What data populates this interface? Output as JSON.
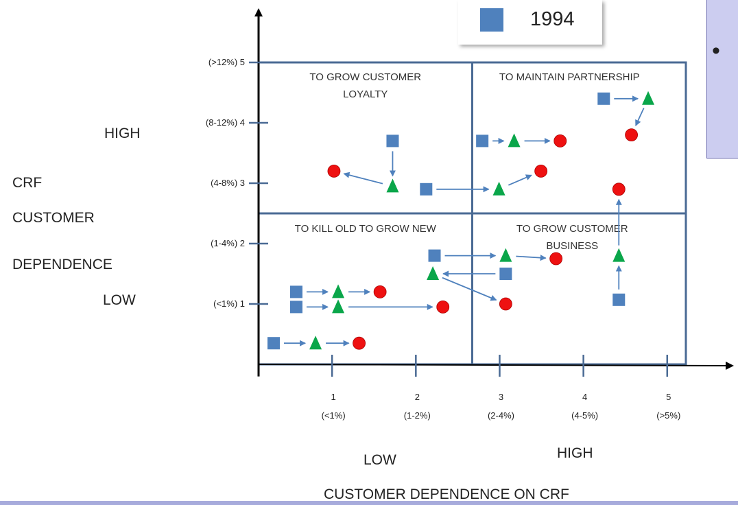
{
  "legend": {
    "label": "1994",
    "swatch_color": "#4f81bd"
  },
  "note_box": {
    "bullet": "•",
    "background": "#cccdf0"
  },
  "colors": {
    "square": "#4f81bd",
    "triangle": "#0aa64a",
    "circle": "#ee1111",
    "arrow": "#4f81bd",
    "grid": "#4a6a94"
  },
  "y_side_labels": {
    "high": "HIGH",
    "low": "LOW",
    "crf": "CRF",
    "customer": "CUSTOMER",
    "dependence": "DEPENDENCE"
  },
  "x_side_labels": {
    "low": "LOW",
    "high": "HIGH",
    "title": "CUSTOMER DEPENDENCE ON CRF"
  },
  "quadrants": {
    "top_left": [
      "TO GROW CUSTOMER",
      "LOYALTY"
    ],
    "top_right": [
      "TO MAINTAIN PARTNERSHIP"
    ],
    "bottom_left": [
      "TO KILL OLD TO GROW NEW"
    ],
    "bottom_right": [
      "TO GROW CUSTOMER",
      "BUSINESS"
    ]
  },
  "chart_data": {
    "type": "scatter",
    "x_axis": {
      "title": "CUSTOMER DEPENDENCE ON CRF",
      "ticks": [
        {
          "value": 1,
          "label": "1",
          "sub": "(<1%)"
        },
        {
          "value": 2,
          "label": "2",
          "sub": "(1-2%)"
        },
        {
          "value": 3,
          "label": "3",
          "sub": "(2-4%)"
        },
        {
          "value": 4,
          "label": "4",
          "sub": "(4-5%)"
        },
        {
          "value": 5,
          "label": "5",
          "sub": "(>5%)"
        }
      ],
      "range": [
        0.2,
        5.6
      ]
    },
    "y_axis": {
      "ticks": [
        {
          "value": 1,
          "label": "(<1%)   1"
        },
        {
          "value": 2,
          "label": "(1-4%)   2"
        },
        {
          "value": 3,
          "label": "(4-8%)   3"
        },
        {
          "value": 4,
          "label": "(8-12%)   4"
        },
        {
          "value": 5,
          "label": "(>12%)   5"
        }
      ],
      "range": [
        -0.2,
        6.3
      ]
    },
    "quadrant_split": {
      "x": 2.55,
      "y": 2.5
    },
    "frame": {
      "x": [
        0.0,
        5.1
      ],
      "y": [
        0.0,
        5.0
      ]
    },
    "legend": [
      {
        "marker": "square",
        "label": "1994"
      }
    ],
    "points": [
      {
        "id": "a1",
        "marker": "square",
        "x": 1.6,
        "y": 3.7
      },
      {
        "id": "a2",
        "marker": "triangle",
        "x": 1.6,
        "y": 2.95
      },
      {
        "id": "a3",
        "marker": "circle",
        "x": 0.9,
        "y": 3.2
      },
      {
        "id": "b1",
        "marker": "square",
        "x": 2.0,
        "y": 2.9
      },
      {
        "id": "b2",
        "marker": "triangle",
        "x": 2.87,
        "y": 2.9
      },
      {
        "id": "b3",
        "marker": "circle",
        "x": 3.37,
        "y": 3.2
      },
      {
        "id": "c1",
        "marker": "square",
        "x": 2.67,
        "y": 3.7
      },
      {
        "id": "c2",
        "marker": "triangle",
        "x": 3.05,
        "y": 3.7
      },
      {
        "id": "c3",
        "marker": "circle",
        "x": 3.6,
        "y": 3.7
      },
      {
        "id": "d1",
        "marker": "square",
        "x": 4.12,
        "y": 4.4
      },
      {
        "id": "d2",
        "marker": "triangle",
        "x": 4.65,
        "y": 4.4
      },
      {
        "id": "d3",
        "marker": "circle",
        "x": 4.45,
        "y": 3.8
      },
      {
        "id": "e1",
        "marker": "square",
        "x": 2.1,
        "y": 1.8
      },
      {
        "id": "e2",
        "marker": "triangle",
        "x": 2.95,
        "y": 1.8
      },
      {
        "id": "e3",
        "marker": "circle",
        "x": 3.55,
        "y": 1.75
      },
      {
        "id": "f1",
        "marker": "square",
        "x": 2.95,
        "y": 1.5
      },
      {
        "id": "f2",
        "marker": "triangle",
        "x": 2.08,
        "y": 1.5
      },
      {
        "id": "f3",
        "marker": "circle",
        "x": 2.95,
        "y": 1.0
      },
      {
        "id": "g1",
        "marker": "square",
        "x": 4.3,
        "y": 1.07
      },
      {
        "id": "g2",
        "marker": "triangle",
        "x": 4.3,
        "y": 1.8
      },
      {
        "id": "g3",
        "marker": "circle",
        "x": 4.3,
        "y": 2.9
      },
      {
        "id": "h1",
        "marker": "square",
        "x": 0.45,
        "y": 1.2
      },
      {
        "id": "h2",
        "marker": "triangle",
        "x": 0.95,
        "y": 1.2
      },
      {
        "id": "h3",
        "marker": "circle",
        "x": 1.45,
        "y": 1.2
      },
      {
        "id": "i1",
        "marker": "square",
        "x": 0.45,
        "y": 0.95
      },
      {
        "id": "i2",
        "marker": "triangle",
        "x": 0.95,
        "y": 0.95
      },
      {
        "id": "i3",
        "marker": "circle",
        "x": 2.2,
        "y": 0.95
      },
      {
        "id": "j1",
        "marker": "square",
        "x": 0.18,
        "y": 0.35
      },
      {
        "id": "j2",
        "marker": "triangle",
        "x": 0.68,
        "y": 0.35
      },
      {
        "id": "j3",
        "marker": "circle",
        "x": 1.2,
        "y": 0.35
      }
    ],
    "arrows": [
      [
        "a1",
        "a2"
      ],
      [
        "a2",
        "a3"
      ],
      [
        "b1",
        "b2"
      ],
      [
        "b2",
        "b3"
      ],
      [
        "c1",
        "c2"
      ],
      [
        "c2",
        "c3"
      ],
      [
        "d1",
        "d2"
      ],
      [
        "d2",
        "d3"
      ],
      [
        "e1",
        "e2"
      ],
      [
        "e2",
        "e3"
      ],
      [
        "f1",
        "f2"
      ],
      [
        "f2",
        "f3"
      ],
      [
        "g1",
        "g2"
      ],
      [
        "g2",
        "g3"
      ],
      [
        "h1",
        "h2"
      ],
      [
        "h2",
        "h3"
      ],
      [
        "i1",
        "i2"
      ],
      [
        "i2",
        "i3"
      ],
      [
        "j1",
        "j2"
      ],
      [
        "j2",
        "j3"
      ]
    ]
  }
}
